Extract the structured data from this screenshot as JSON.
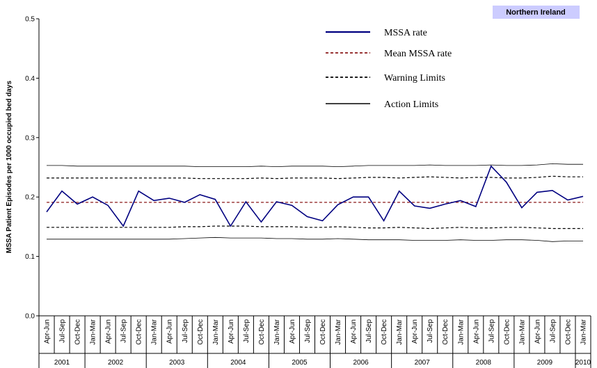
{
  "chart_data": {
    "type": "line",
    "region_label": "Northern Ireland",
    "ylabel": "MSSA Patient Episodes per 1000 occupied bed days",
    "ylim": [
      0,
      0.5
    ],
    "yticks": [
      "0.0",
      "0.1",
      "0.2",
      "0.3",
      "0.4",
      "0.5"
    ],
    "ytick_values": [
      0,
      0.1,
      0.2,
      0.3,
      0.4,
      0.5
    ],
    "categories": [
      "Apr-Jun",
      "Jul-Sep",
      "Oct-Dec",
      "Jan-Mar",
      "Apr-Jun",
      "Jul-Sep",
      "Oct-Dec",
      "Jan-Mar",
      "Apr-Jun",
      "Jul-Sep",
      "Oct-Dec",
      "Jan-Mar",
      "Apr-Jun",
      "Jul-Sep",
      "Oct-Dec",
      "Jan-Mar",
      "Apr-Jun",
      "Jul-Sep",
      "Oct-Dec",
      "Jan-Mar",
      "Apr-Jun",
      "Jul-Sep",
      "Oct-Dec",
      "Jan-Mar",
      "Apr-Jun",
      "Jul-Sep",
      "Oct-Dec",
      "Jan-Mar",
      "Apr-Jun",
      "Jul-Sep",
      "Oct-Dec",
      "Jan-Mar",
      "Apr-Jun",
      "Jul-Sep",
      "Oct-Dec",
      "Jan-Mar"
    ],
    "year_groups": [
      {
        "label": "2001",
        "count": 3
      },
      {
        "label": "2002",
        "count": 4
      },
      {
        "label": "2003",
        "count": 4
      },
      {
        "label": "2004",
        "count": 4
      },
      {
        "label": "2005",
        "count": 4
      },
      {
        "label": "2006",
        "count": 4
      },
      {
        "label": "2007",
        "count": 4
      },
      {
        "label": "2008",
        "count": 4
      },
      {
        "label": "2009",
        "count": 4
      },
      {
        "label": "2010",
        "count": 1
      }
    ],
    "series": [
      {
        "name": "MSSA rate",
        "color": "#000080",
        "style": "solid",
        "values": [
          0.175,
          0.21,
          0.188,
          0.2,
          0.186,
          0.151,
          0.21,
          0.194,
          0.198,
          0.191,
          0.204,
          0.196,
          0.151,
          0.192,
          0.158,
          0.192,
          0.186,
          0.167,
          0.16,
          0.187,
          0.2,
          0.2,
          0.16,
          0.21,
          0.185,
          0.181,
          0.188,
          0.194,
          0.184,
          0.252,
          0.225,
          0.182,
          0.208,
          0.211,
          0.195,
          0.201
        ]
      },
      {
        "name": "Mean MSSA rate",
        "color": "#8b1a1a",
        "style": "dashed",
        "values": [
          0.191,
          0.191,
          0.191,
          0.191,
          0.191,
          0.191,
          0.191,
          0.191,
          0.191,
          0.191,
          0.191,
          0.191,
          0.191,
          0.191,
          0.191,
          0.191,
          0.191,
          0.191,
          0.191,
          0.191,
          0.191,
          0.191,
          0.191,
          0.191,
          0.191,
          0.191,
          0.191,
          0.191,
          0.191,
          0.191,
          0.191,
          0.191,
          0.191,
          0.191,
          0.191,
          0.191
        ]
      },
      {
        "name": "Warning Limits",
        "color": "#000000",
        "style": "dashed",
        "values": [
          0.232,
          0.232,
          0.232,
          0.232,
          0.232,
          0.232,
          0.232,
          0.232,
          0.232,
          0.232,
          0.231,
          0.231,
          0.231,
          0.231,
          0.232,
          0.231,
          0.232,
          0.232,
          0.232,
          0.231,
          0.232,
          0.233,
          0.233,
          0.232,
          0.233,
          0.234,
          0.233,
          0.232,
          0.233,
          0.233,
          0.232,
          0.232,
          0.233,
          0.235,
          0.234,
          0.234
        ]
      },
      {
        "name": "Warning Limits lower",
        "color": "#000000",
        "style": "dashed",
        "values": [
          0.149,
          0.149,
          0.149,
          0.149,
          0.149,
          0.149,
          0.149,
          0.149,
          0.149,
          0.15,
          0.15,
          0.151,
          0.151,
          0.151,
          0.15,
          0.15,
          0.15,
          0.149,
          0.149,
          0.15,
          0.149,
          0.148,
          0.148,
          0.149,
          0.148,
          0.147,
          0.148,
          0.149,
          0.148,
          0.148,
          0.149,
          0.149,
          0.148,
          0.147,
          0.147,
          0.147
        ]
      },
      {
        "name": "Action Limits",
        "color": "#000000",
        "style": "thin",
        "values": [
          0.253,
          0.253,
          0.252,
          0.252,
          0.252,
          0.252,
          0.252,
          0.252,
          0.252,
          0.252,
          0.251,
          0.251,
          0.251,
          0.251,
          0.252,
          0.251,
          0.252,
          0.252,
          0.252,
          0.251,
          0.252,
          0.253,
          0.253,
          0.253,
          0.253,
          0.254,
          0.253,
          0.253,
          0.253,
          0.254,
          0.253,
          0.253,
          0.254,
          0.256,
          0.255,
          0.255
        ]
      },
      {
        "name": "Action Limits lower",
        "color": "#000000",
        "style": "thin",
        "values": [
          0.129,
          0.129,
          0.129,
          0.129,
          0.129,
          0.129,
          0.129,
          0.129,
          0.129,
          0.13,
          0.131,
          0.132,
          0.131,
          0.131,
          0.131,
          0.13,
          0.13,
          0.129,
          0.129,
          0.13,
          0.129,
          0.128,
          0.128,
          0.128,
          0.127,
          0.127,
          0.127,
          0.128,
          0.127,
          0.127,
          0.128,
          0.128,
          0.127,
          0.125,
          0.126,
          0.126
        ]
      }
    ],
    "legend": [
      {
        "label": "MSSA rate",
        "color": "#000080",
        "style": "solid"
      },
      {
        "label": "Mean MSSA rate",
        "color": "#8b1a1a",
        "style": "dashed"
      },
      {
        "label": "Warning Limits",
        "color": "#000000",
        "style": "dashed"
      },
      {
        "label": "Action Limits",
        "color": "#000000",
        "style": "thin"
      }
    ],
    "legend_position": "top-right",
    "grid": false
  }
}
